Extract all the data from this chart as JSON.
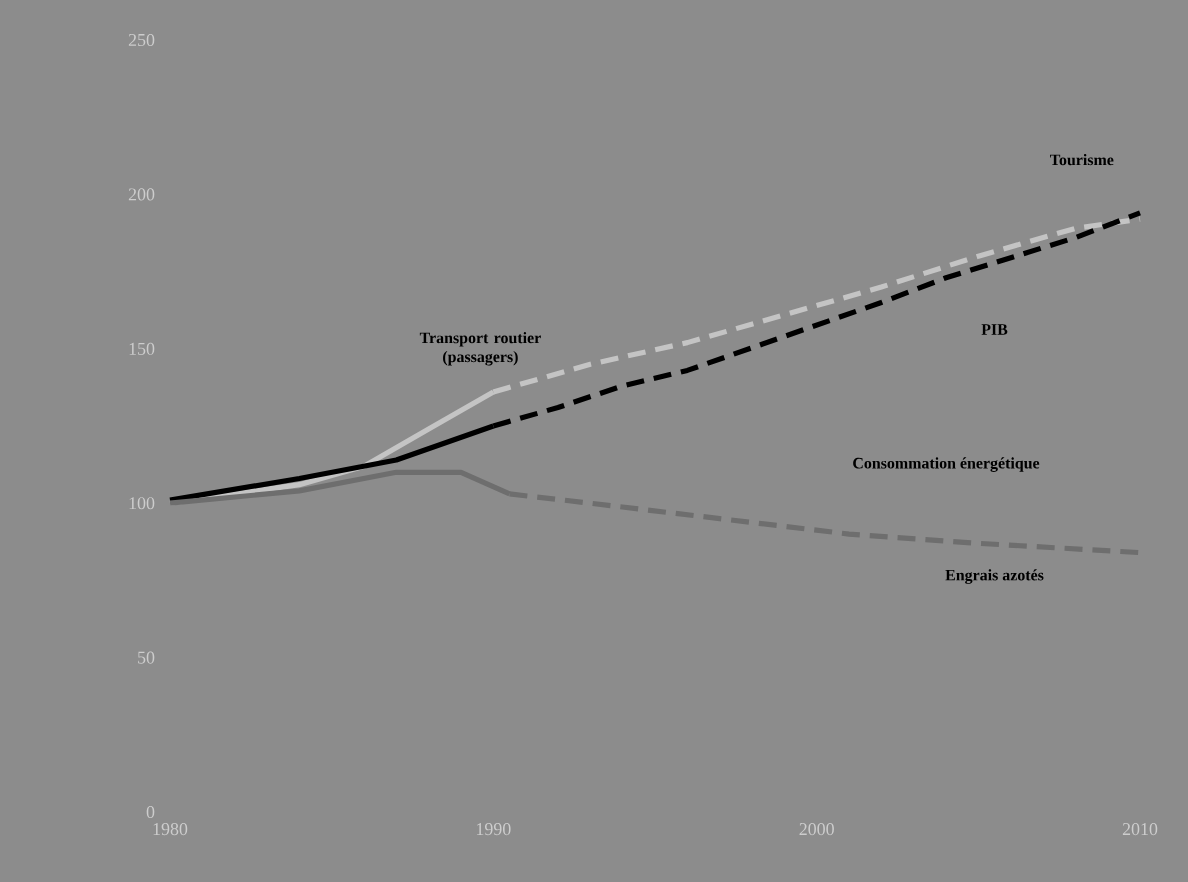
{
  "chart_data": {
    "type": "line",
    "xlim": [
      1980,
      2010
    ],
    "xticks": [
      1980,
      1990,
      2000,
      2010
    ],
    "ylim": [
      0,
      250
    ],
    "yticks": [
      0,
      50,
      100,
      150,
      200,
      250
    ],
    "series": [
      {
        "color": "#c4c4c4",
        "line_style": "solid",
        "x": [
          1980,
          1984,
          1986,
          1988,
          1990
        ],
        "values": [
          100,
          106,
          112,
          124,
          136
        ]
      },
      {
        "color": "#c4c4c4",
        "line_style": "dashed",
        "x": [
          1990,
          1993,
          1996,
          1999,
          2002,
          2005,
          2008,
          2010
        ],
        "values": [
          136,
          145,
          152,
          161,
          170,
          180,
          189,
          192
        ]
      },
      {
        "color": "#000000",
        "line_style": "solid",
        "x": [
          1980,
          1984,
          1987,
          1990
        ],
        "values": [
          101,
          108,
          114,
          125
        ]
      },
      {
        "color": "#000000",
        "line_style": "dashed",
        "x": [
          1990,
          1992,
          1994,
          1996,
          1999,
          2002,
          2004,
          2008,
          2010
        ],
        "values": [
          125,
          131,
          138,
          143,
          154,
          165,
          173,
          186,
          194
        ]
      },
      {
        "color": "#6e6e6e",
        "line_style": "solid",
        "x": [
          1980,
          1984,
          1987,
          1989,
          1990.5
        ],
        "values": [
          100,
          104,
          110,
          110,
          103
        ]
      },
      {
        "color": "#6e6e6e",
        "line_style": "dashed",
        "x": [
          1990.5,
          1993,
          1997,
          2001,
          2005,
          2010
        ],
        "values": [
          103,
          100,
          95,
          90,
          87,
          84
        ]
      }
    ],
    "annotations": [
      "Tourisme",
      "Transport routier\n(passagers)",
      "PIB",
      "Consommation énergétique",
      "Engrais azotés"
    ]
  }
}
